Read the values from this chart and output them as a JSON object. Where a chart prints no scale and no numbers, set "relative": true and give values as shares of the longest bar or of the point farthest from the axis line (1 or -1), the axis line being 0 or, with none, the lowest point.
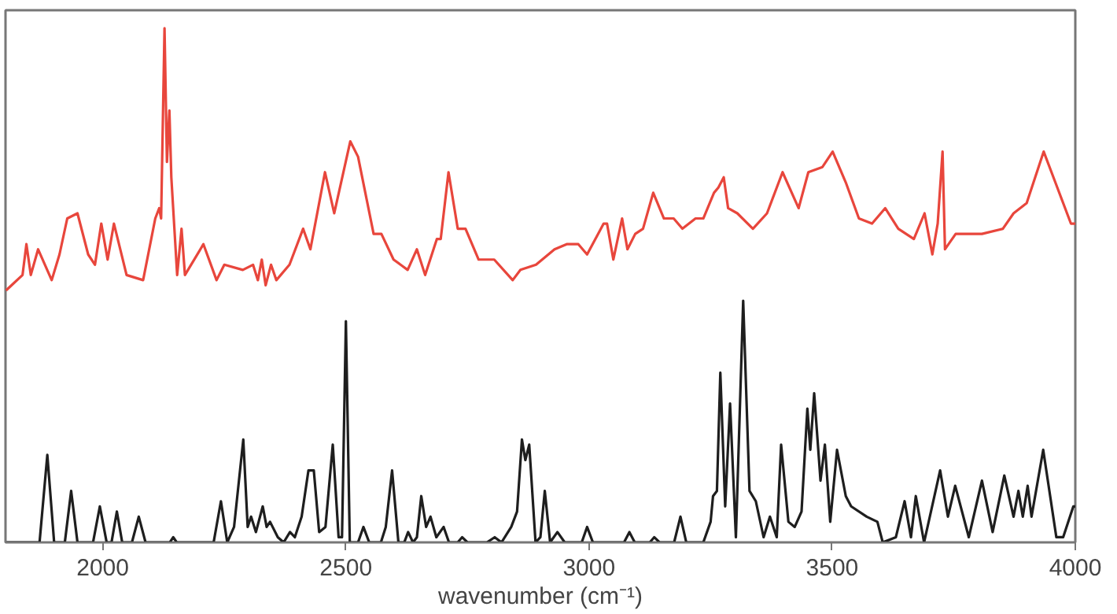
{
  "chart_data": {
    "type": "line",
    "relative": true,
    "xlabel": "wavenumber (cm⁻¹)",
    "xlim": [
      1800,
      4000
    ],
    "xticks": [
      2000,
      2500,
      3000,
      3500,
      4000
    ],
    "tick_labels": "x",
    "grid": false,
    "line_style": "solid",
    "series": [
      {
        "color": "#e8463c",
        "x": [
          1801,
          1835,
          1843,
          1852,
          1867,
          1895,
          1911,
          1927,
          1948,
          1970,
          1984,
          1997,
          2010,
          2023,
          2049,
          2083,
          2108,
          2116,
          2120,
          2127,
          2132,
          2137,
          2141,
          2153,
          2162,
          2169,
          2207,
          2234,
          2250,
          2288,
          2309,
          2319,
          2327,
          2335,
          2346,
          2357,
          2384,
          2412,
          2427,
          2457,
          2476,
          2509,
          2525,
          2557,
          2573,
          2598,
          2627,
          2646,
          2663,
          2687,
          2695,
          2711,
          2730,
          2746,
          2773,
          2805,
          2843,
          2859,
          2891,
          2929,
          2954,
          2978,
          2996,
          3030,
          3037,
          3050,
          3068,
          3079,
          3095,
          3111,
          3132,
          3154,
          3174,
          3192,
          3219,
          3235,
          3257,
          3266,
          3277,
          3286,
          3305,
          3337,
          3366,
          3398,
          3431,
          3451,
          3480,
          3501,
          3528,
          3555,
          3582,
          3609,
          3636,
          3668,
          3690,
          3706,
          3717,
          3727,
          3732,
          3754,
          3808,
          3851,
          3873,
          3900,
          3935,
          3959,
          3991,
          4000
        ],
        "values": [
          0.49,
          0.52,
          0.58,
          0.52,
          0.57,
          0.51,
          0.56,
          0.63,
          0.64,
          0.56,
          0.54,
          0.62,
          0.55,
          0.62,
          0.52,
          0.51,
          0.63,
          0.65,
          0.63,
          1.0,
          0.74,
          0.84,
          0.71,
          0.52,
          0.61,
          0.52,
          0.58,
          0.51,
          0.54,
          0.53,
          0.54,
          0.51,
          0.55,
          0.5,
          0.54,
          0.51,
          0.54,
          0.61,
          0.57,
          0.72,
          0.64,
          0.78,
          0.75,
          0.6,
          0.6,
          0.55,
          0.53,
          0.57,
          0.52,
          0.59,
          0.59,
          0.72,
          0.61,
          0.61,
          0.55,
          0.55,
          0.51,
          0.53,
          0.54,
          0.57,
          0.58,
          0.58,
          0.56,
          0.62,
          0.62,
          0.55,
          0.63,
          0.57,
          0.6,
          0.61,
          0.68,
          0.63,
          0.63,
          0.61,
          0.63,
          0.63,
          0.68,
          0.69,
          0.71,
          0.65,
          0.64,
          0.61,
          0.64,
          0.72,
          0.65,
          0.72,
          0.73,
          0.76,
          0.7,
          0.63,
          0.62,
          0.65,
          0.61,
          0.59,
          0.64,
          0.56,
          0.62,
          0.76,
          0.57,
          0.6,
          0.6,
          0.61,
          0.64,
          0.66,
          0.76,
          0.7,
          0.62,
          0.62
        ]
      },
      {
        "color": "#1e1e1e",
        "x": [
          1802,
          1870,
          1886,
          1900,
          1922,
          1935,
          1948,
          1980,
          1994,
          2008,
          2018,
          2029,
          2040,
          2060,
          2074,
          2088,
          2138,
          2145,
          2152,
          2228,
          2243,
          2256,
          2270,
          2289,
          2298,
          2305,
          2315,
          2329,
          2337,
          2344,
          2360,
          2372,
          2385,
          2395,
          2409,
          2423,
          2434,
          2445,
          2458,
          2473,
          2485,
          2492,
          2500,
          2508,
          2525,
          2536,
          2548,
          2572,
          2582,
          2595,
          2608,
          2620,
          2628,
          2638,
          2646,
          2655,
          2665,
          2674,
          2686,
          2701,
          2712,
          2730,
          2739,
          2750,
          2790,
          2806,
          2820,
          2840,
          2852,
          2862,
          2869,
          2877,
          2890,
          2900,
          2909,
          2920,
          2935,
          2950,
          2985,
          2996,
          3008,
          3072,
          3083,
          3094,
          3125,
          3134,
          3145,
          3175,
          3188,
          3200,
          3235,
          3250,
          3255,
          3263,
          3270,
          3280,
          3290,
          3302,
          3317,
          3330,
          3343,
          3359,
          3372,
          3386,
          3395,
          3410,
          3423,
          3437,
          3449,
          3455,
          3463,
          3476,
          3485,
          3496,
          3510,
          3528,
          3539,
          3571,
          3593,
          3604,
          3631,
          3649,
          3662,
          3672,
          3689,
          3722,
          3738,
          3753,
          3781,
          3808,
          3830,
          3854,
          3873,
          3883,
          3892,
          3902,
          3910,
          3934,
          3961,
          3975,
          3996,
          4000
        ],
        "values": [
          0,
          0,
          0.17,
          0,
          0,
          0.1,
          0,
          0,
          0.07,
          0,
          0,
          0.06,
          0,
          0,
          0.05,
          0,
          0,
          0.01,
          0,
          0,
          0.08,
          0,
          0.03,
          0.2,
          0.03,
          0.05,
          0.02,
          0.07,
          0.03,
          0.04,
          0.01,
          0,
          0.02,
          0.01,
          0.05,
          0.14,
          0.14,
          0.02,
          0.03,
          0.19,
          0.01,
          0.01,
          0.43,
          0,
          0,
          0.03,
          0,
          0,
          0.03,
          0.14,
          0,
          0,
          0.02,
          0,
          0.01,
          0.09,
          0.03,
          0.05,
          0.01,
          0.03,
          0,
          0,
          0.01,
          0,
          0,
          0.01,
          0,
          0.03,
          0.06,
          0.2,
          0.16,
          0.19,
          0,
          0.01,
          0.1,
          0,
          0.02,
          0,
          0,
          0.03,
          0,
          0,
          0.02,
          0,
          0,
          0.01,
          0,
          0,
          0.05,
          0,
          0,
          0.04,
          0.09,
          0.1,
          0.33,
          0.07,
          0.27,
          0.01,
          0.47,
          0.1,
          0.08,
          0.01,
          0.05,
          0.01,
          0.19,
          0.04,
          0.03,
          0.06,
          0.26,
          0.18,
          0.29,
          0.12,
          0.19,
          0.04,
          0.18,
          0.09,
          0.07,
          0.05,
          0.04,
          0,
          0.01,
          0.08,
          0.01,
          0.09,
          0,
          0.14,
          0.05,
          0.11,
          0.01,
          0.12,
          0.02,
          0.13,
          0.05,
          0.1,
          0.05,
          0.11,
          0.05,
          0.18,
          0.01,
          0.01,
          0.07,
          0.07
        ]
      }
    ]
  }
}
